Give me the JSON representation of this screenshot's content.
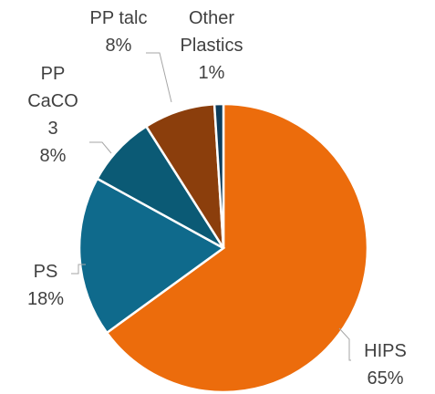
{
  "chart_data": {
    "type": "pie",
    "categories": [
      "HIPS",
      "PS",
      "PP CaCO3",
      "PP talc",
      "Other Plastics"
    ],
    "values": [
      65,
      18,
      8,
      8,
      1
    ],
    "value_labels": [
      "65%",
      "18%",
      "8%",
      "8%",
      "1%"
    ],
    "colors": [
      "#ec6c0c",
      "#0f6a8c",
      "#0b5a75",
      "#8b3e0c",
      "#0d3d5c"
    ]
  }
}
